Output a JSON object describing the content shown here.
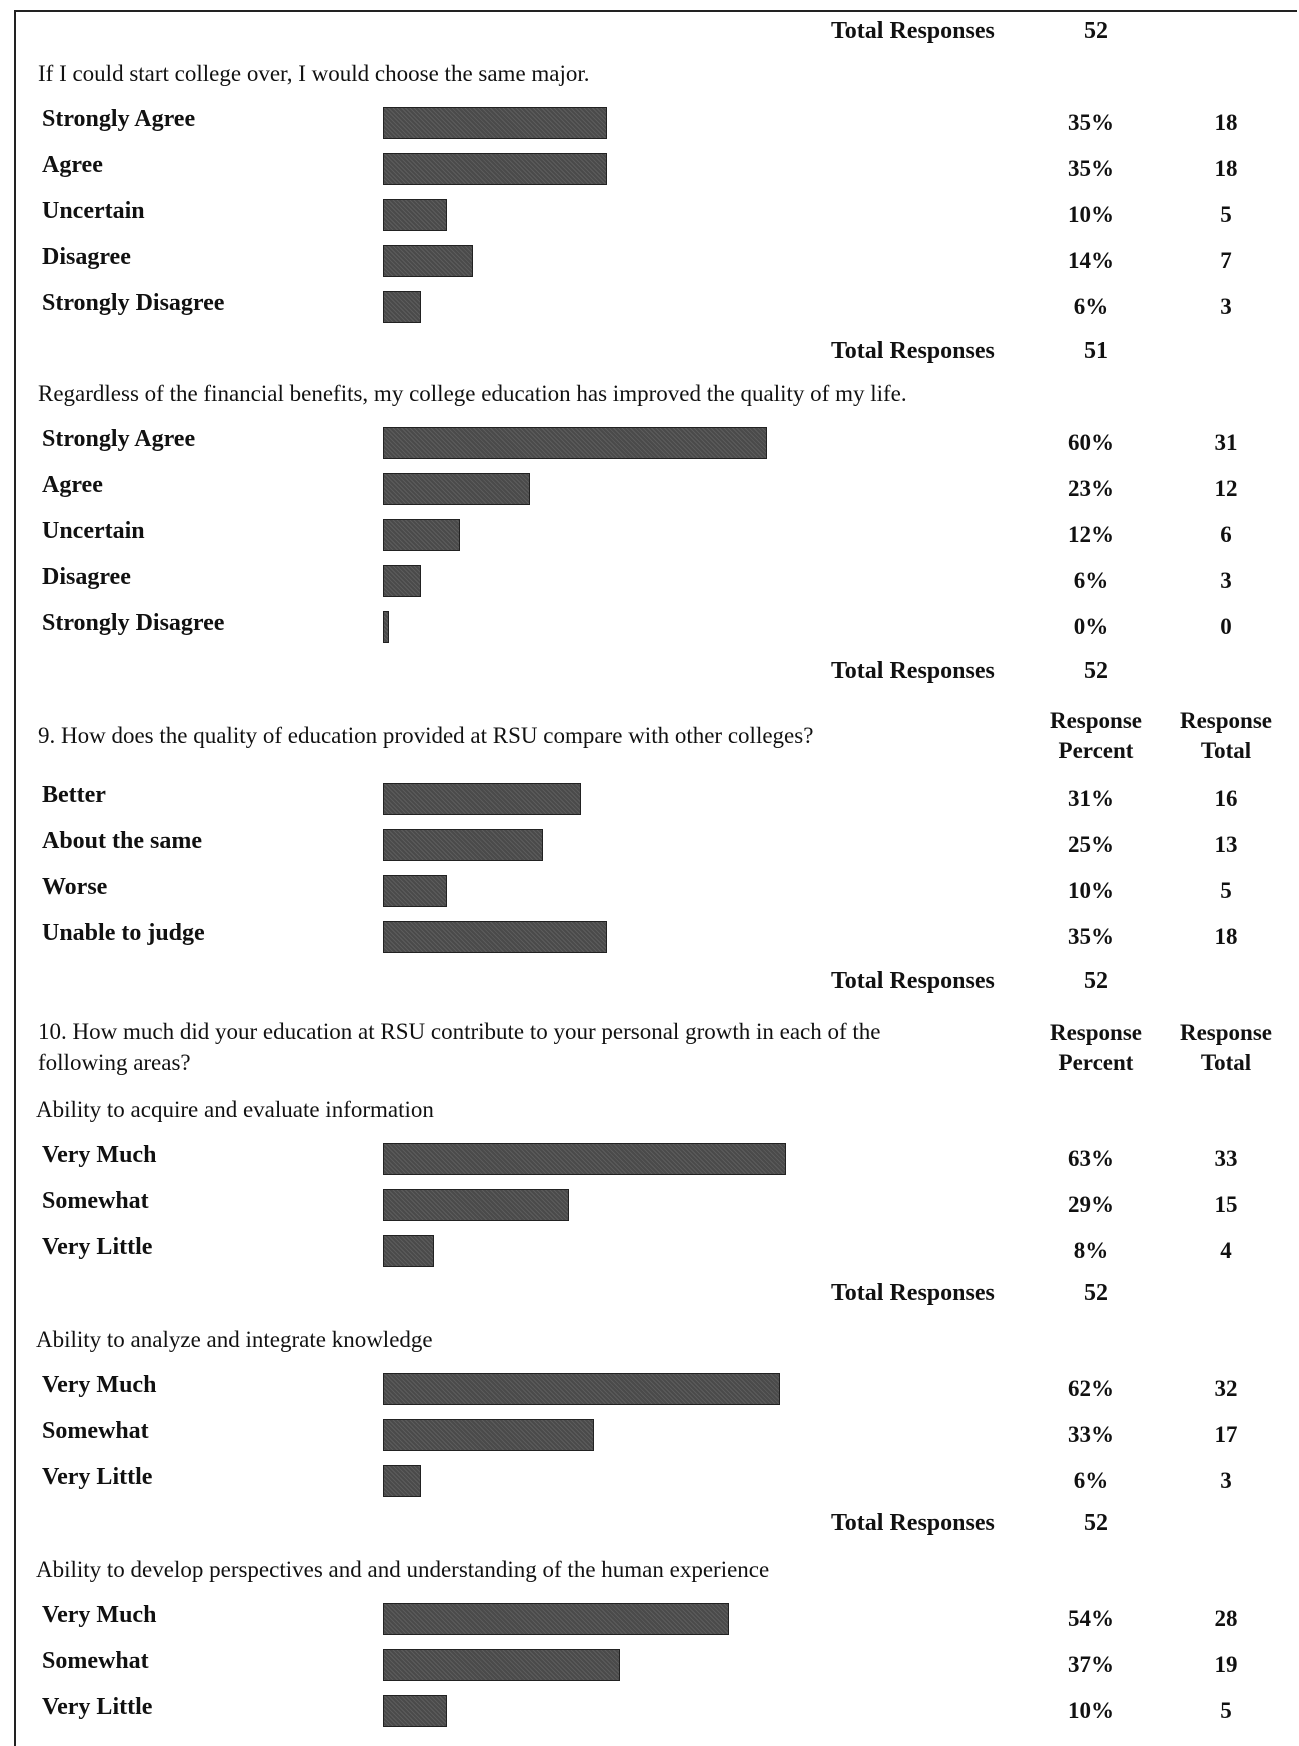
{
  "top_total": {
    "label": "Total Responses",
    "value": "52"
  },
  "sections": [
    {
      "id": "same-major",
      "statement": "If I could start college over, I would choose the same major.",
      "rows": [
        {
          "label": "Strongly Agree",
          "percent": "35%",
          "total": "18",
          "share": 0.35
        },
        {
          "label": "Agree",
          "percent": "35%",
          "total": "18",
          "share": 0.35
        },
        {
          "label": "Uncertain",
          "percent": "10%",
          "total": "5",
          "share": 0.1
        },
        {
          "label": "Disagree",
          "percent": "14%",
          "total": "7",
          "share": 0.14
        },
        {
          "label": "Strongly Disagree",
          "percent": "6%",
          "total": "3",
          "share": 0.06
        }
      ],
      "total": {
        "label": "Total Responses",
        "value": "51"
      }
    },
    {
      "id": "quality-of-life",
      "statement": "Regardless of the financial benefits, my college education has improved the quality of my life.",
      "rows": [
        {
          "label": "Strongly Agree",
          "percent": "60%",
          "total": "31",
          "share": 0.6
        },
        {
          "label": "Agree",
          "percent": "23%",
          "total": "12",
          "share": 0.23
        },
        {
          "label": "Uncertain",
          "percent": "12%",
          "total": "6",
          "share": 0.12
        },
        {
          "label": "Disagree",
          "percent": "6%",
          "total": "3",
          "share": 0.06
        },
        {
          "label": "Strongly Disagree",
          "percent": "0%",
          "total": "0",
          "share": 0.0
        }
      ],
      "total": {
        "label": "Total Responses",
        "value": "52"
      }
    }
  ],
  "q9": {
    "question": "9. How does the quality of education provided at RSU compare with other colleges?",
    "col_percent": [
      "Response",
      "Percent"
    ],
    "col_total": [
      "Response",
      "Total"
    ],
    "rows": [
      {
        "label": "Better",
        "percent": "31%",
        "total": "16",
        "share": 0.31
      },
      {
        "label": "About the same",
        "percent": "25%",
        "total": "13",
        "share": 0.25
      },
      {
        "label": "Worse",
        "percent": "10%",
        "total": "5",
        "share": 0.1
      },
      {
        "label": "Unable to judge",
        "percent": "35%",
        "total": "18",
        "share": 0.35
      }
    ],
    "total": {
      "label": "Total Responses",
      "value": "52"
    }
  },
  "q10": {
    "question": "10. How much did your education at RSU contribute to your personal growth in each of the following areas?",
    "col_percent": [
      "Response",
      "Percent"
    ],
    "col_total": [
      "Response",
      "Total"
    ],
    "subsections": [
      {
        "title": "Ability to acquire and evaluate information",
        "rows": [
          {
            "label": "Very Much",
            "percent": "63%",
            "total": "33",
            "share": 0.63
          },
          {
            "label": "Somewhat",
            "percent": "29%",
            "total": "15",
            "share": 0.29
          },
          {
            "label": "Very Little",
            "percent": "8%",
            "total": "4",
            "share": 0.08
          }
        ],
        "total": {
          "label": "Total Responses",
          "value": "52"
        }
      },
      {
        "title": "Ability to analyze and integrate knowledge",
        "rows": [
          {
            "label": "Very Much",
            "percent": "62%",
            "total": "32",
            "share": 0.62
          },
          {
            "label": "Somewhat",
            "percent": "33%",
            "total": "17",
            "share": 0.33
          },
          {
            "label": "Very Little",
            "percent": "6%",
            "total": "3",
            "share": 0.06
          }
        ],
        "total": {
          "label": "Total Responses",
          "value": "52"
        }
      },
      {
        "title": "Ability to develop perspectives and and understanding of the human experience",
        "rows": [
          {
            "label": "Very Much",
            "percent": "54%",
            "total": "28",
            "share": 0.54
          },
          {
            "label": "Somewhat",
            "percent": "37%",
            "total": "19",
            "share": 0.37
          },
          {
            "label": "Very Little",
            "percent": "10%",
            "total": "5",
            "share": 0.1
          }
        ]
      }
    ]
  }
}
